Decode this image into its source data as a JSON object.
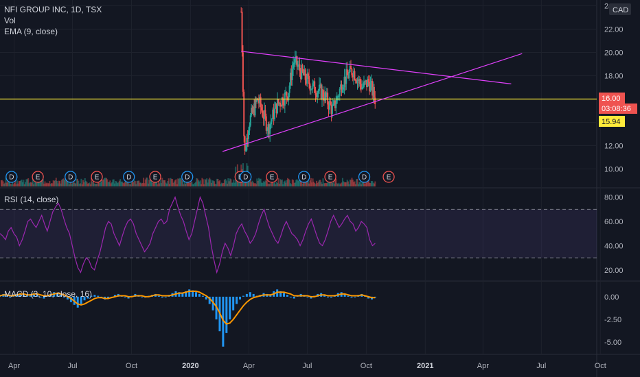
{
  "header": {
    "title": "NFI GROUP INC, 1D, TSX",
    "vol_label": "Vol",
    "ema_label": "EMA (9, close)",
    "currency": "CAD"
  },
  "rsi_panel": {
    "label": "RSI (14, close)"
  },
  "macd_panel": {
    "label": "MACD (3, 10, close, 16)"
  },
  "price_badges": {
    "last_price": "16.00",
    "countdown": "03:08:36",
    "ema_value": "15.94"
  },
  "colors": {
    "background": "#131722",
    "grid": "#1e222d",
    "up": "#26a69a",
    "down": "#ef5350",
    "trendline": "#e040fb",
    "horizontal_line": "#ffeb3b",
    "rsi_line": "#9c27b0",
    "macd_hist": "#2196f3",
    "macd_signal": "#ff9800",
    "earnings": "#ef5350",
    "dividend": "#2196f3"
  },
  "chart_data": [
    {
      "type": "candlestick",
      "title": "NFI GROUP INC, 1D, TSX",
      "y_axis_ticks": [
        "10.00",
        "12.00",
        "14.00",
        "16.00",
        "18.00",
        "20.00",
        "22.00",
        "24.00"
      ],
      "ylim": [
        8.5,
        24.5
      ],
      "x_axis_ticks": [
        "Apr",
        "Jul",
        "Oct",
        "2020",
        "Apr",
        "Jul",
        "Oct",
        "2021",
        "Apr",
        "Jul",
        "Oct"
      ],
      "x_axis_bold": [
        false,
        false,
        false,
        true,
        false,
        false,
        false,
        true,
        false,
        false,
        false
      ],
      "approx_close_path": [
        {
          "x": "2020-03-20",
          "y": 23.5
        },
        {
          "x": "2020-03-23",
          "y": 17.0
        },
        {
          "x": "2020-03-25",
          "y": 11.0
        },
        {
          "x": "2020-04-01",
          "y": 14.0
        },
        {
          "x": "2020-04-15",
          "y": 16.0
        },
        {
          "x": "2020-05-01",
          "y": 13.5
        },
        {
          "x": "2020-05-15",
          "y": 15.5
        },
        {
          "x": "2020-06-01",
          "y": 16.5
        },
        {
          "x": "2020-06-10",
          "y": 19.3
        },
        {
          "x": "2020-06-25",
          "y": 18.0
        },
        {
          "x": "2020-07-10",
          "y": 17.0
        },
        {
          "x": "2020-07-25",
          "y": 16.5
        },
        {
          "x": "2020-08-10",
          "y": 15.0
        },
        {
          "x": "2020-08-25",
          "y": 17.5
        },
        {
          "x": "2020-09-10",
          "y": 18.5
        },
        {
          "x": "2020-09-25",
          "y": 17.0
        },
        {
          "x": "2020-10-05",
          "y": 17.5
        },
        {
          "x": "2020-10-15",
          "y": 16.0
        }
      ],
      "trendlines": [
        {
          "name": "upper",
          "from": {
            "x": "2020-03-20",
            "y": 20.1
          },
          "to": {
            "x": "2021-05-15",
            "y": 17.3
          }
        },
        {
          "name": "lower",
          "from": {
            "x": "2020-02-20",
            "y": 11.5
          },
          "to": {
            "x": "2021-06-01",
            "y": 19.9
          }
        }
      ],
      "horizontal_line": 16.0,
      "events": [
        {
          "type": "D",
          "x": "2019-03-28"
        },
        {
          "type": "E",
          "x": "2019-05-08"
        },
        {
          "type": "D",
          "x": "2019-06-28"
        },
        {
          "type": "E",
          "x": "2019-08-08"
        },
        {
          "type": "D",
          "x": "2019-09-27"
        },
        {
          "type": "E",
          "x": "2019-11-07"
        },
        {
          "type": "D",
          "x": "2019-12-27"
        },
        {
          "type": "E",
          "x": "2020-03-19"
        },
        {
          "type": "D",
          "x": "2020-03-27"
        },
        {
          "type": "E",
          "x": "2020-05-07"
        },
        {
          "type": "D",
          "x": "2020-06-26"
        },
        {
          "type": "E",
          "x": "2020-08-06"
        },
        {
          "type": "D",
          "x": "2020-09-28"
        },
        {
          "type": "E",
          "x": "2020-11-05"
        }
      ]
    },
    {
      "type": "line",
      "title": "RSI (14, close)",
      "y_axis_ticks": [
        "20.00",
        "40.00",
        "60.00",
        "80.00"
      ],
      "ylim": [
        12,
        86
      ],
      "band": [
        30,
        70
      ],
      "series": [
        {
          "values": [
            50,
            48,
            45,
            52,
            55,
            50,
            47,
            40,
            45,
            52,
            60,
            62,
            58,
            55,
            60,
            65,
            58,
            52,
            60,
            68,
            72,
            75,
            70,
            62,
            55,
            50,
            40,
            30,
            22,
            18,
            25,
            30,
            28,
            22,
            20,
            28,
            35,
            45,
            55,
            60,
            58,
            50,
            45,
            40,
            48,
            55,
            60,
            62,
            58,
            50,
            45,
            40,
            35,
            38,
            42,
            50,
            55,
            60,
            62,
            58,
            60,
            70,
            75,
            80,
            72,
            65,
            60,
            52,
            45,
            50,
            60,
            70,
            80,
            75,
            65,
            55,
            40,
            28,
            18,
            25,
            35,
            42,
            38,
            32,
            40,
            50,
            55,
            58,
            52,
            48,
            42,
            45,
            50,
            58,
            65,
            70,
            62,
            55,
            50,
            45,
            42,
            48,
            55,
            60,
            55,
            50,
            48,
            45,
            40,
            45,
            52,
            58,
            62,
            55,
            48,
            42,
            40,
            45,
            52,
            60,
            65,
            60,
            55,
            58,
            62,
            65,
            60,
            58,
            52,
            55,
            60,
            58,
            55,
            45,
            40,
            42
          ]
        }
      ]
    },
    {
      "type": "bar",
      "title": "MACD (3, 10, close, 16)",
      "y_axis_ticks": [
        "-5.00",
        "-2.50",
        "0.00"
      ],
      "ylim": [
        -6.2,
        1.5
      ],
      "series": [
        {
          "name": "histogram",
          "values": [
            0.2,
            0.3,
            0.1,
            -0.1,
            0.1,
            0.3,
            0.4,
            0.2,
            0.1,
            0.3,
            0.4,
            0.2,
            0.0,
            -0.2,
            0.1,
            0.3,
            0.5,
            0.4,
            0.2,
            0.0,
            -0.3,
            -0.6,
            -0.9,
            -1.2,
            -0.8,
            -0.4,
            -0.2,
            0.1,
            0.2,
            0.1,
            -0.1,
            -0.3,
            -0.2,
            0.0,
            0.2,
            0.3,
            0.1,
            0.0,
            -0.2,
            0.1,
            0.3,
            0.2,
            0.0,
            -0.1,
            0.1,
            0.2,
            0.3,
            0.1,
            -0.1,
            0.0,
            0.2,
            0.4,
            0.6,
            0.5,
            0.4,
            0.6,
            0.8,
            0.7,
            0.5,
            0.3,
            0.1,
            -0.3,
            -0.8,
            -1.5,
            -2.5,
            -3.8,
            -5.5,
            -4.0,
            -2.5,
            -1.5,
            -0.8,
            -0.3,
            0.1,
            0.3,
            0.5,
            0.3,
            0.1,
            0.2,
            0.4,
            0.3,
            0.2,
            0.6,
            0.8,
            0.6,
            0.4,
            0.2,
            0.0,
            -0.2,
            0.1,
            0.3,
            0.2,
            0.0,
            -0.2,
            0.1,
            0.3,
            0.4,
            0.2,
            0.0,
            -0.1,
            0.2,
            0.4,
            0.5,
            0.3,
            0.1,
            -0.1,
            0.0,
            0.2,
            0.3,
            0.1,
            -0.2,
            -0.3,
            -0.1
          ]
        },
        {
          "name": "signal",
          "values": [
            0.1,
            0.2,
            0.2,
            0.1,
            0.1,
            0.2,
            0.3,
            0.3,
            0.2,
            0.2,
            0.3,
            0.3,
            0.2,
            0.1,
            0.1,
            0.2,
            0.3,
            0.4,
            0.3,
            0.2,
            0.0,
            -0.2,
            -0.5,
            -0.8,
            -0.9,
            -0.8,
            -0.6,
            -0.4,
            -0.2,
            -0.1,
            -0.1,
            -0.2,
            -0.2,
            -0.1,
            0.0,
            0.1,
            0.1,
            0.1,
            0.0,
            0.0,
            0.1,
            0.1,
            0.1,
            0.0,
            0.0,
            0.1,
            0.2,
            0.2,
            0.1,
            0.1,
            0.1,
            0.2,
            0.3,
            0.4,
            0.4,
            0.5,
            0.6,
            0.6,
            0.6,
            0.5,
            0.3,
            0.1,
            -0.2,
            -0.6,
            -1.1,
            -1.8,
            -2.6,
            -3.0,
            -2.9,
            -2.5,
            -2.0,
            -1.5,
            -1.0,
            -0.6,
            -0.3,
            -0.1,
            0.0,
            0.1,
            0.2,
            0.2,
            0.2,
            0.3,
            0.5,
            0.5,
            0.5,
            0.4,
            0.3,
            0.1,
            0.1,
            0.1,
            0.1,
            0.1,
            0.0,
            0.0,
            0.1,
            0.2,
            0.2,
            0.1,
            0.1,
            0.1,
            0.2,
            0.3,
            0.3,
            0.2,
            0.1,
            0.1,
            0.1,
            0.2,
            0.1,
            0.0,
            -0.1,
            -0.1
          ]
        }
      ]
    }
  ]
}
